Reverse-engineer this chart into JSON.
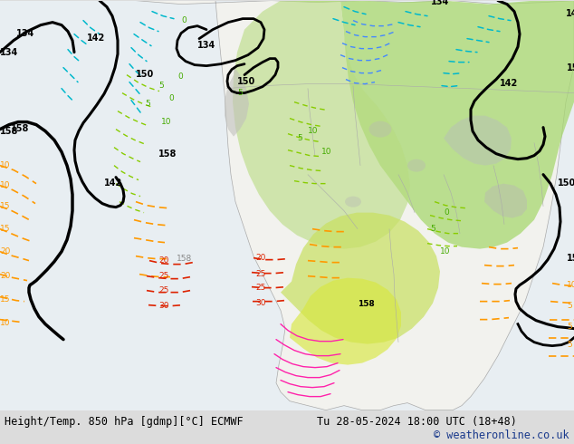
{
  "title_left": "Height/Temp. 850 hPa [gdmp][°C] ECMWF",
  "title_right": "Tu 28-05-2024 18:00 UTC (18+48)",
  "copyright": "© weatheronline.co.uk",
  "bg_color": "#f0f0f0",
  "ocean_color": "#dce8f0",
  "land_color": "#f0f0ec",
  "bottom_bar_color": "#dcdcdc",
  "title_fontsize": 8.5,
  "copyright_color": "#1a3a8c",
  "figsize": [
    6.34,
    4.9
  ],
  "dpi": 100
}
